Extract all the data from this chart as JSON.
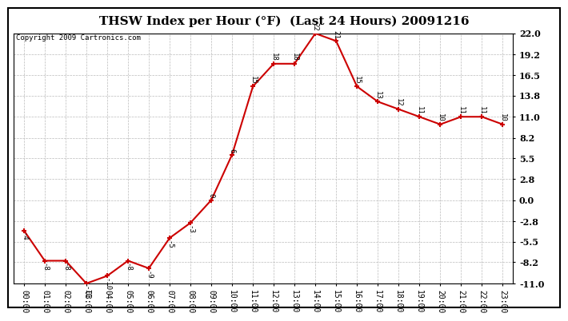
{
  "title": "THSW Index per Hour (°F)  (Last 24 Hours) 20091216",
  "copyright": "Copyright 2009 Cartronics.com",
  "hours": [
    "00:00",
    "01:00",
    "02:00",
    "03:00",
    "04:00",
    "05:00",
    "06:00",
    "07:00",
    "08:00",
    "09:00",
    "10:00",
    "11:00",
    "12:00",
    "13:00",
    "14:00",
    "15:00",
    "16:00",
    "17:00",
    "18:00",
    "19:00",
    "20:00",
    "21:00",
    "22:00",
    "23:00"
  ],
  "values": [
    -4,
    -8,
    -8,
    -11,
    -10,
    -8,
    -9,
    -5,
    -3,
    0,
    6,
    15,
    18,
    18,
    22,
    21,
    15,
    13,
    12,
    11,
    10,
    11,
    11,
    10
  ],
  "line_color": "#cc0000",
  "marker_color": "#cc0000",
  "bg_color": "#ffffff",
  "plot_bg_color": "#ffffff",
  "grid_color": "#bbbbbb",
  "ylim_min": -11.0,
  "ylim_max": 22.0,
  "yticks": [
    -11.0,
    -8.2,
    -5.5,
    -2.8,
    0.0,
    2.8,
    5.5,
    8.2,
    11.0,
    13.8,
    16.5,
    19.2,
    22.0
  ],
  "title_fontsize": 11,
  "copyright_fontsize": 6.5,
  "label_fontsize": 6.5,
  "tick_fontsize": 7,
  "ytick_fontsize": 8
}
